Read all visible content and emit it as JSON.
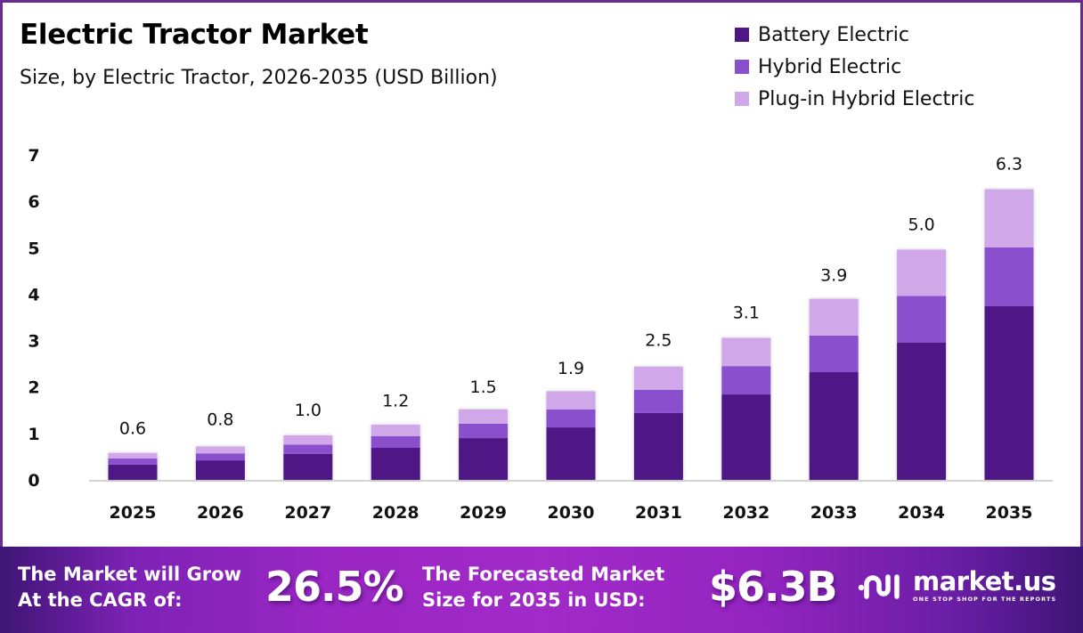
{
  "header": {
    "title": "Electric Tractor Market",
    "subtitle": "Size, by Electric Tractor, 2026-2035 (USD Billion)"
  },
  "legend": [
    {
      "label": "Battery Electric",
      "color": "#4f1786"
    },
    {
      "label": "Hybrid Electric",
      "color": "#8a4fcc"
    },
    {
      "label": "Plug-in Hybrid Electric",
      "color": "#d0a8ea"
    }
  ],
  "chart_data": {
    "type": "bar",
    "stacked": true,
    "title": "Electric Tractor Market",
    "subtitle": "Size, by Electric Tractor, 2026-2035 (USD Billion)",
    "xlabel": "",
    "ylabel": "",
    "ylim": [
      0,
      7
    ],
    "yticks": [
      "0",
      "1",
      "2",
      "3",
      "4",
      "5",
      "6",
      "7"
    ],
    "grid": false,
    "legend_position": "top-right",
    "categories": [
      "2025",
      "2026",
      "2027",
      "2028",
      "2029",
      "2030",
      "2031",
      "2032",
      "2033",
      "2034",
      "2035"
    ],
    "series": [
      {
        "name": "Battery Electric",
        "color": "#4f1786",
        "values": [
          0.33,
          0.42,
          0.56,
          0.69,
          0.9,
          1.13,
          1.44,
          1.84,
          2.32,
          2.96,
          3.74
        ]
      },
      {
        "name": "Hybrid Electric",
        "color": "#8a4fcc",
        "values": [
          0.13,
          0.15,
          0.2,
          0.25,
          0.31,
          0.39,
          0.5,
          0.61,
          0.79,
          1.0,
          1.27
        ]
      },
      {
        "name": "Plug-in Hybrid Electric",
        "color": "#d0a8ea",
        "values": [
          0.12,
          0.15,
          0.2,
          0.25,
          0.31,
          0.39,
          0.5,
          0.61,
          0.79,
          1.0,
          1.25
        ]
      }
    ],
    "totals": [
      0.6,
      0.8,
      1.0,
      1.2,
      1.5,
      1.9,
      2.5,
      3.1,
      3.9,
      5.0,
      6.3
    ],
    "total_labels": [
      "0.6",
      "0.8",
      "1.0",
      "1.2",
      "1.5",
      "1.9",
      "2.5",
      "3.1",
      "3.9",
      "5.0",
      "6.3"
    ]
  },
  "footer": {
    "cagr_text_line1": "The Market will Grow",
    "cagr_text_line2": "At the CAGR of:",
    "cagr_value": "26.5%",
    "forecast_text_line1": "The Forecasted Market",
    "forecast_text_line2": "Size for 2035 in USD:",
    "forecast_value": "$6.3B",
    "logo_name": "market.us",
    "logo_tagline": "ONE STOP SHOP FOR THE REPORTS",
    "logo_icon": "market-us-logo-icon"
  }
}
